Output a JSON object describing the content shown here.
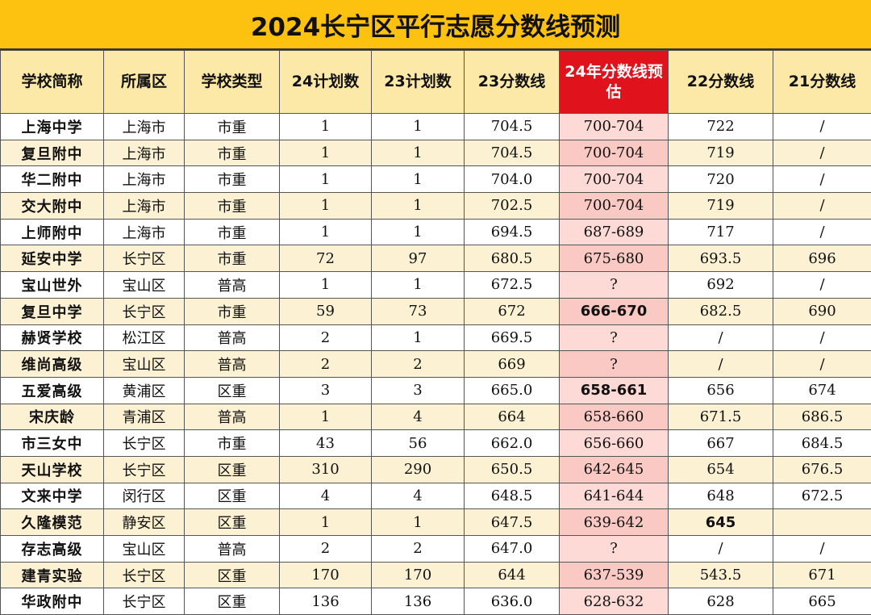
{
  "title": "2024长宁区平行志愿分数线预测",
  "headers": [
    "学校简称",
    "所属区",
    "学校类型",
    "24计划数",
    "23计划数",
    "23分数线",
    "24年分数线预估",
    "22分数线",
    "21分数线"
  ],
  "rows": [
    [
      "上海中学",
      "上海市",
      "市重",
      "1",
      "1",
      "704.5",
      "700-704",
      "722",
      "/"
    ],
    [
      "复旦附中",
      "上海市",
      "市重",
      "1",
      "1",
      "704.5",
      "700-704",
      "719",
      "/"
    ],
    [
      "华二附中",
      "上海市",
      "市重",
      "1",
      "1",
      "704.0",
      "700-704",
      "720",
      "/"
    ],
    [
      "交大附中",
      "上海市",
      "市重",
      "1",
      "1",
      "702.5",
      "700-704",
      "719",
      "/"
    ],
    [
      "上师附中",
      "上海市",
      "市重",
      "1",
      "1",
      "694.5",
      "687-689",
      "717",
      "/"
    ],
    [
      "延安中学",
      "长宁区",
      "市重",
      "72",
      "97",
      "680.5",
      "675-680",
      "693.5",
      "696"
    ],
    [
      "宝山世外",
      "宝山区",
      "普高",
      "1",
      "1",
      "672.5",
      "?",
      "692",
      "/"
    ],
    [
      "复旦中学",
      "长宁区",
      "市重",
      "59",
      "73",
      "672",
      "666-670",
      "682.5",
      "690"
    ],
    [
      "赫贤学校",
      "松江区",
      "普高",
      "2",
      "1",
      "669.5",
      "?",
      "/",
      "/"
    ],
    [
      "维尚高级",
      "宝山区",
      "普高",
      "2",
      "2",
      "669",
      "?",
      "/",
      "/"
    ],
    [
      "五爱高级",
      "黄浦区",
      "区重",
      "3",
      "3",
      "665.0",
      "658-661",
      "656",
      "674"
    ],
    [
      "宋庆龄",
      "青浦区",
      "普高",
      "1",
      "4",
      "664",
      "658-660",
      "671.5",
      "686.5"
    ],
    [
      "市三女中",
      "长宁区",
      "市重",
      "43",
      "56",
      "662.0",
      "656-660",
      "667",
      "684.5"
    ],
    [
      "天山学校",
      "长宁区",
      "区重",
      "310",
      "290",
      "650.5",
      "642-645",
      "654",
      "676.5"
    ],
    [
      "文来中学",
      "闵行区",
      "区重",
      "4",
      "4",
      "648.5",
      "641-644",
      "648",
      "672.5"
    ],
    [
      "久隆模范",
      "静安区",
      "区重",
      "1",
      "1",
      "647.5",
      "639-642",
      "645",
      ""
    ],
    [
      "存志高级",
      "宝山区",
      "普高",
      "2",
      "2",
      "647.0",
      "?",
      "/",
      "/"
    ],
    [
      "建青实验",
      "长宁区",
      "区重",
      "170",
      "170",
      "644",
      "637-539",
      "543.5",
      "671"
    ],
    [
      "华政附中",
      "长宁区",
      "区重",
      "136",
      "136",
      "636.0",
      "628-632",
      "628",
      "665"
    ]
  ]
}
